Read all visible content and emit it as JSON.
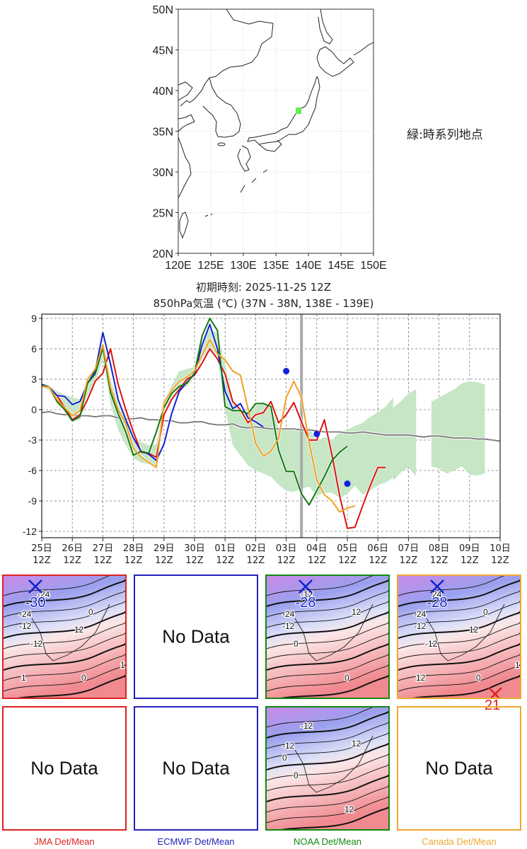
{
  "map": {
    "lat_ticks": [
      "50N",
      "45N",
      "40N",
      "35N",
      "30N",
      "25N",
      "20N"
    ],
    "lon_ticks": [
      "120E",
      "125E",
      "130E",
      "135E",
      "140E",
      "145E",
      "150E"
    ],
    "point_marker_color": "#66ee55",
    "legend_note": "緑:時系列地点"
  },
  "header": {
    "init_time": "初期時刻: 2025-11-25 12Z",
    "subtitle": "850hPa気温 (℃)  (37N - 38N,  138E - 139E)"
  },
  "chart_data": {
    "type": "line",
    "title": "850hPa気温 (℃)  (37N - 38N,  138E - 139E)",
    "subtitle": "初期時刻: 2025-11-25 12Z",
    "xlabel": "",
    "ylabel": "",
    "ylim": [
      -12.5,
      9.3
    ],
    "xlim_days": [
      0,
      15
    ],
    "yticks": [
      9,
      6,
      3,
      0,
      -3,
      -6,
      -9,
      -12
    ],
    "ytick_labels": [
      "9",
      "6",
      "3",
      "0",
      "-3",
      "-6",
      "-9",
      "-12"
    ],
    "xtick_labels": [
      [
        "25日",
        "12Z"
      ],
      [
        "26日",
        "12Z"
      ],
      [
        "27日",
        "12Z"
      ],
      [
        "28日",
        "12Z"
      ],
      [
        "29日",
        "12Z"
      ],
      [
        "30日",
        "12Z"
      ],
      [
        "01日",
        "12Z"
      ],
      [
        "02日",
        "12Z"
      ],
      [
        "03日",
        "12Z"
      ],
      [
        "04日",
        "12Z"
      ],
      [
        "05日",
        "12Z"
      ],
      [
        "06日",
        "12Z"
      ],
      [
        "07日",
        "12Z"
      ],
      [
        "08日",
        "12Z"
      ],
      [
        "09日",
        "12Z"
      ],
      [
        "10日",
        "12Z"
      ]
    ],
    "grid": true,
    "step_days": 0.25,
    "current_time_marker_day": 8.5,
    "series": [
      {
        "name": "JMA",
        "color": "#dd1111",
        "start_day": 0,
        "values": [
          2.3,
          2.2,
          1.4,
          0.2,
          -1.0,
          -0.5,
          1.0,
          2.8,
          3.6,
          6.0,
          2.5,
          0.0,
          -2.2,
          -4.2,
          -4.3,
          -4.7,
          -0.5,
          1.0,
          2.0,
          3.0,
          3.4,
          4.6,
          6.0,
          5.0,
          3.5,
          0.8,
          0.0,
          -1.3,
          -0.5,
          -0.3,
          0.8,
          -1.3,
          -0.5,
          0.7,
          -1.2,
          -3.0,
          -3.0,
          -1.0,
          -4.5,
          -8.5,
          -11.7,
          -11.6,
          -9.5,
          -7.5,
          -5.7,
          -5.7
        ]
      },
      {
        "name": "ECMWF",
        "color": "#1122cc",
        "start_day": 0,
        "values": [
          2.5,
          2.2,
          1.4,
          1.3,
          0.5,
          0.8,
          2.6,
          3.8,
          7.6,
          4.5,
          1.0,
          -1.0,
          -2.8,
          -4.1,
          -4.4,
          -5.0,
          -3.4,
          -0.4,
          1.8,
          2.7,
          3.5,
          6.4,
          8.4,
          6.0,
          1.8,
          0.1,
          0.6,
          -0.8,
          -1.2,
          -1.7
        ]
      },
      {
        "name": "NOAA",
        "color": "#117711",
        "start_day": 0,
        "values": [
          2.4,
          2.2,
          0.8,
          0.0,
          -1.1,
          -0.7,
          2.6,
          3.5,
          6.1,
          1.7,
          -0.4,
          -2.2,
          -4.5,
          -4.1,
          -4.3,
          -2.2,
          0.2,
          1.6,
          2.3,
          2.6,
          3.6,
          7.3,
          9.0,
          7.8,
          0.3,
          -0.1,
          -0.1,
          -0.4,
          0.6,
          0.6,
          0.3,
          -4.0,
          -6.1,
          -6.1,
          -8.3,
          -9.4,
          -8.0,
          -6.6,
          -5.0,
          -4.2,
          -3.6
        ]
      },
      {
        "name": "Canada",
        "color": "#f0a020",
        "start_day": 0,
        "values": [
          2.3,
          2.2,
          1.0,
          0.2,
          -0.6,
          -0.1,
          3.0,
          4.0,
          6.4,
          2.2,
          0.0,
          -1.4,
          -3.8,
          -4.7,
          -5.2,
          -5.7,
          0.7,
          1.9,
          2.8,
          3.2,
          3.8,
          5.4,
          6.9,
          5.5,
          4.9,
          3.8,
          3.4,
          0.1,
          -3.3,
          -4.6,
          -4.1,
          -2.8,
          1.2,
          2.8,
          1.2,
          -3.2,
          -6.9,
          -8.4,
          -9.0,
          -10.1,
          -9.7,
          -9.5
        ]
      }
    ],
    "climatology": {
      "name": "Climatology",
      "color": "#777777",
      "start_day": 0,
      "values": [
        -0.3,
        -0.2,
        -0.4,
        -0.5,
        -0.5,
        -0.6,
        -0.6,
        -0.7,
        -0.6,
        -0.6,
        -0.8,
        -0.9,
        -0.9,
        -0.8,
        -1.0,
        -1.0,
        -1.1,
        -1.1,
        -1.3,
        -1.3,
        -1.2,
        -1.2,
        -1.4,
        -1.5,
        -1.5,
        -1.4,
        -1.7,
        -1.8,
        -1.7,
        -1.8,
        -1.9,
        -1.9,
        -1.9,
        -1.9,
        -2.0,
        -2.0,
        -2.1,
        -2.2,
        -2.2,
        -2.2,
        -2.3,
        -2.3,
        -2.2,
        -2.3,
        -2.4,
        -2.5,
        -2.5,
        -2.5,
        -2.5,
        -2.6,
        -2.7,
        -2.6,
        -2.6,
        -2.7,
        -2.8,
        -2.8,
        -2.8,
        -2.9,
        -2.9,
        -3.0,
        -3.1
      ]
    },
    "ensemble_spread": {
      "name": "Ensemble range",
      "color": "#c6e6c6",
      "segments": [
        {
          "start_day": 0,
          "upper": [
            2.6,
            2.4,
            1.8,
            1.5,
            1.2,
            1.0,
            2.8,
            4.0,
            6.6,
            3.0,
            0.8,
            -0.5,
            -2.5,
            -3.2,
            -3.5,
            -3.4,
            0.8,
            2.4,
            3.8,
            4.0,
            4.2,
            6.5,
            8.0,
            7.5,
            4.5,
            1.0,
            0.0,
            -0.5,
            0.4,
            0.8,
            0.3,
            -1.8,
            -1.8,
            -2.1,
            -1.9,
            -1.8,
            -3.1,
            -2.7,
            -3.0,
            -2.2,
            -2.0,
            -1.6,
            -1.3,
            -0.7,
            -0.3,
            0.3,
            1.2
          ],
          "lower": [
            2.2,
            1.9,
            0.6,
            -0.2,
            -1.2,
            -1.0,
            1.4,
            2.6,
            5.0,
            0.6,
            -2.0,
            -3.5,
            -4.8,
            -5.2,
            -5.4,
            -5.6,
            -0.2,
            1.0,
            1.8,
            2.3,
            3.2,
            5.0,
            6.0,
            5.0,
            0.0,
            -3.5,
            -4.5,
            -5.5,
            -6.0,
            -6.3,
            -6.6,
            -7.4,
            -8.0,
            -8.1,
            -7.8,
            -7.6,
            -8.5,
            -8.2,
            -8.2,
            -8.7,
            -8.3,
            -7.5,
            -8.4,
            -8.0,
            -7.4,
            -7.2,
            -6.7
          ]
        },
        {
          "start_day": 11.5,
          "upper": [
            0.2,
            0.8,
            1.6,
            2.0
          ],
          "lower": [
            -7.0,
            -6.2,
            -5.7,
            -6.6
          ]
        },
        {
          "start_day": 12.75,
          "upper": [
            0.8,
            1.2,
            1.6,
            2.0,
            2.6,
            2.8,
            2.7,
            2.5
          ],
          "lower": [
            -5.6,
            -5.8,
            -6.3,
            -6.0,
            -5.6,
            -6.4,
            -6.5,
            -6.3
          ]
        }
      ]
    },
    "observation_points": {
      "color": "#1122dd",
      "points": [
        {
          "day": 8.0,
          "value": 3.8
        },
        {
          "day": 9.0,
          "value": -2.4
        },
        {
          "day": 10.0,
          "value": -7.3
        }
      ]
    }
  },
  "panels": [
    {
      "model": "JMA",
      "label": "JMA Det/Mean",
      "color": "#dd2222",
      "row1": {
        "has_data": true,
        "min_label": "-30",
        "max_label": "",
        "contour_labels": [
          "-24",
          "-24",
          "-12",
          "-12",
          "0",
          "0",
          "12",
          "12",
          "1"
        ]
      },
      "row2": {
        "has_data": false,
        "text": "No Data"
      }
    },
    {
      "model": "ECMWF",
      "label": "ECMWF Det/Mean",
      "color": "#2222bb",
      "row1": {
        "has_data": false,
        "text": "No Data"
      },
      "row2": {
        "has_data": false,
        "text": "No Data"
      }
    },
    {
      "model": "NOAA",
      "label": "NOAA Det/Mean",
      "color": "#118811",
      "row1": {
        "has_data": true,
        "min_label": "-28",
        "max_label": "",
        "contour_labels": [
          "-12",
          "-24",
          "-12",
          "0",
          "0",
          "12"
        ]
      },
      "row2": {
        "has_data": true,
        "min_label": "",
        "max_label": "",
        "contour_labels": [
          "-12",
          "-12",
          "0",
          "0",
          "12",
          "12"
        ]
      }
    },
    {
      "model": "Canada",
      "label": "Canada Det/Mean",
      "color": "#f0a830",
      "row1": {
        "has_data": true,
        "min_label": "-28",
        "max_label": "21",
        "contour_labels": [
          "24",
          "-24",
          "-12",
          "-12",
          "0",
          "0",
          "12",
          "12",
          "12"
        ]
      },
      "row2": {
        "has_data": false,
        "text": "No Data"
      }
    }
  ]
}
